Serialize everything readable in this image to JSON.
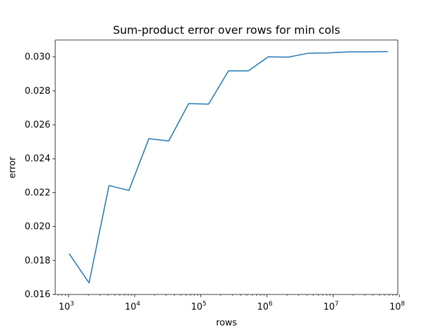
{
  "chart_data": {
    "type": "line",
    "title": "Sum-product error over rows for min cols",
    "xlabel": "rows",
    "ylabel": "error",
    "xscale": "log",
    "xlim": [
      631,
      95000000
    ],
    "ylim": [
      0.016,
      0.031
    ],
    "grid": false,
    "x_ticks": [
      {
        "value": 1000,
        "base": "10",
        "exp": "3"
      },
      {
        "value": 10000,
        "base": "10",
        "exp": "4"
      },
      {
        "value": 100000,
        "base": "10",
        "exp": "5"
      },
      {
        "value": 1000000,
        "base": "10",
        "exp": "6"
      },
      {
        "value": 10000000,
        "base": "10",
        "exp": "7"
      },
      {
        "value": 100000000,
        "base": "10",
        "exp": "8"
      }
    ],
    "y_ticks": [
      {
        "value": 0.016,
        "label": "0.016"
      },
      {
        "value": 0.018,
        "label": "0.018"
      },
      {
        "value": 0.02,
        "label": "0.020"
      },
      {
        "value": 0.022,
        "label": "0.022"
      },
      {
        "value": 0.024,
        "label": "0.024"
      },
      {
        "value": 0.026,
        "label": "0.026"
      },
      {
        "value": 0.028,
        "label": "0.028"
      },
      {
        "value": 0.03,
        "label": "0.030"
      }
    ],
    "series": [
      {
        "color": "#1f77b4",
        "x": [
          1024,
          2048,
          4096,
          8192,
          16384,
          32768,
          65536,
          131072,
          262144,
          524288,
          1048576,
          2097152,
          4194304,
          8388608,
          16777216,
          33554432,
          67108864
        ],
        "y": [
          0.0184,
          0.01668,
          0.02242,
          0.02213,
          0.02518,
          0.02505,
          0.02725,
          0.02722,
          0.02918,
          0.02918,
          0.03001,
          0.02999,
          0.03022,
          0.03024,
          0.0303,
          0.0303,
          0.03032
        ]
      }
    ]
  }
}
